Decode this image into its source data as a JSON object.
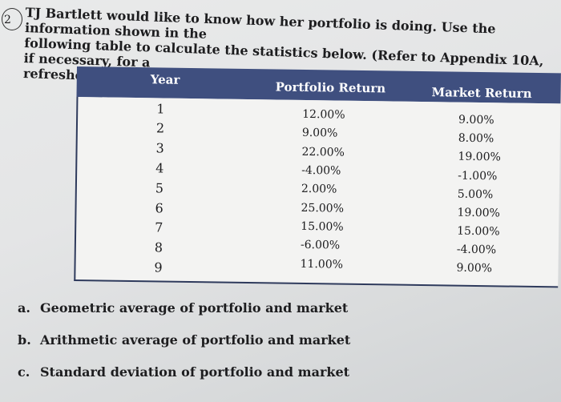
{
  "problem": {
    "number": "2",
    "lines": [
      "TJ Bartlett would like to know how her portfolio is doing. Use the information shown in the",
      "following table to calculate the statistics below. (Refer to Appendix 10A, if necessary, for a",
      "refresher on the formulas and purpose of each.)"
    ]
  },
  "table": {
    "headers": [
      "Year",
      "Portfolio Return",
      "Market Return"
    ],
    "rows": [
      {
        "year": "1",
        "portfolio": "12.00%",
        "market": "9.00%"
      },
      {
        "year": "2",
        "portfolio": "9.00%",
        "market": "8.00%"
      },
      {
        "year": "3",
        "portfolio": "22.00%",
        "market": "19.00%"
      },
      {
        "year": "4",
        "portfolio": "-4.00%",
        "market": "-1.00%"
      },
      {
        "year": "5",
        "portfolio": "2.00%",
        "market": "5.00%"
      },
      {
        "year": "6",
        "portfolio": "25.00%",
        "market": "19.00%"
      },
      {
        "year": "7",
        "portfolio": "15.00%",
        "market": "15.00%"
      },
      {
        "year": "8",
        "portfolio": "-6.00%",
        "market": "-4.00%"
      },
      {
        "year": "9",
        "portfolio": "11.00%",
        "market": "9.00%"
      }
    ]
  },
  "questions": [
    {
      "letter": "a.",
      "text": "Geometric average of portfolio and market"
    },
    {
      "letter": "b.",
      "text": "Arithmetic average of portfolio and market"
    },
    {
      "letter": "c.",
      "text": "Standard deviation of portfolio and market"
    }
  ]
}
